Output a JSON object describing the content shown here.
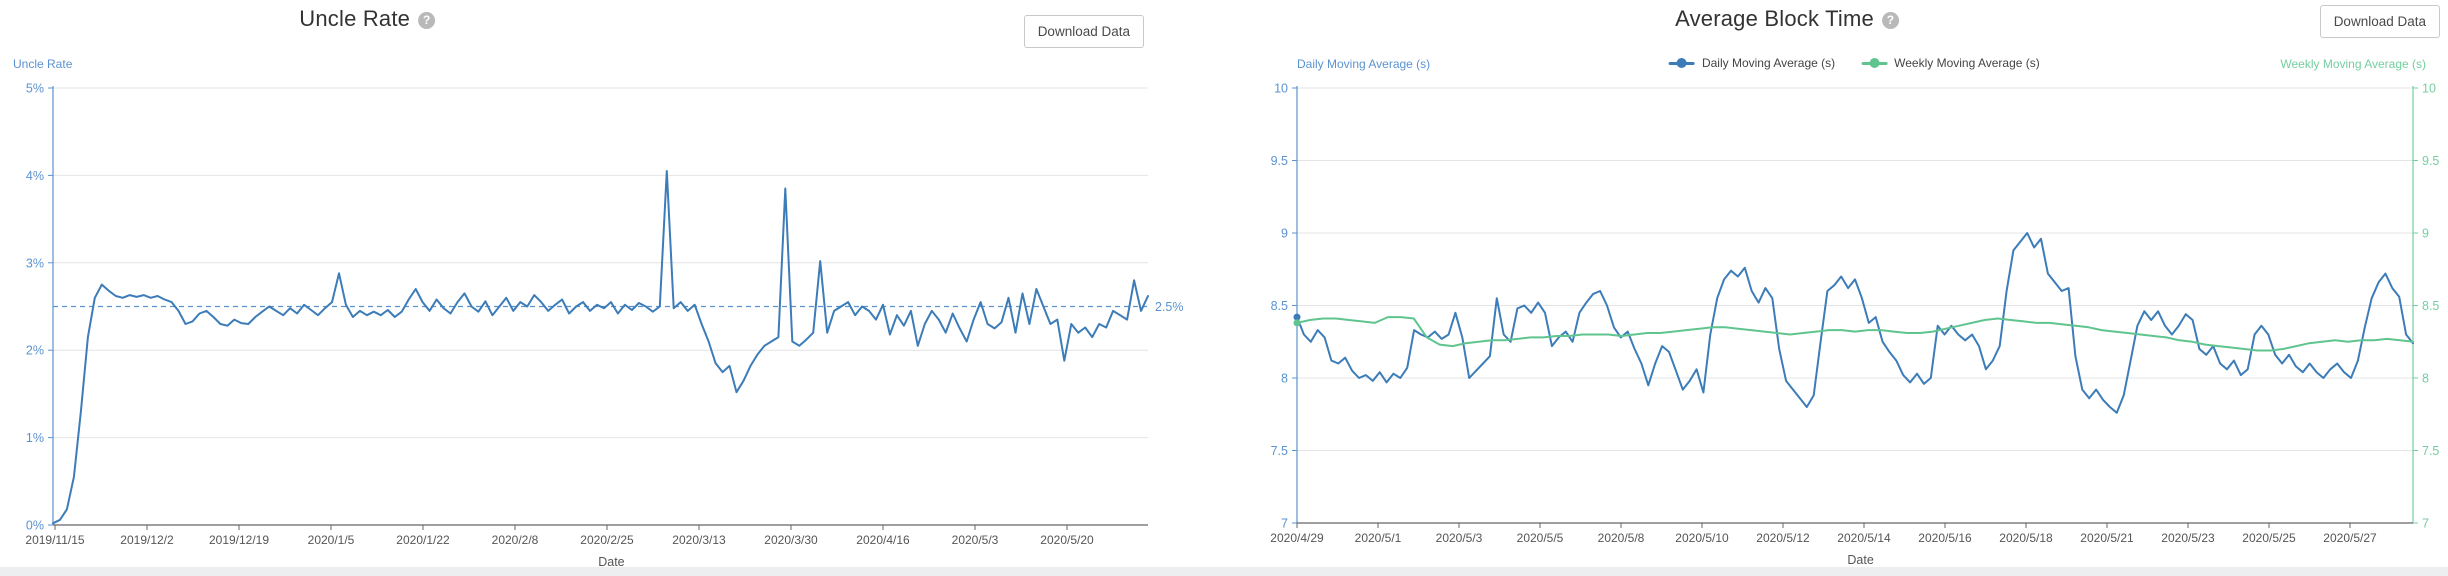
{
  "colors": {
    "blue_line": "#3c7cb8",
    "green_line": "#5fc48e",
    "axis_blue": "#5b93cf",
    "axis_green": "#74cfa0",
    "grid": "#e4e4e4",
    "x_axis": "#666666",
    "tick_text": "#555555"
  },
  "cards": [
    {
      "download_button_label": "Download Data",
      "help_icon_glyph": "?"
    },
    {
      "download_button_label": "Download Data",
      "help_icon_glyph": "?"
    }
  ],
  "chart_data": [
    {
      "type": "line",
      "title": "Uncle Rate",
      "xlabel": "Date",
      "ylabel": "Uncle Rate",
      "grid": true,
      "legend_position": "none",
      "ylim": [
        0,
        5
      ],
      "y_tick_labels": [
        "0%",
        "1%",
        "2%",
        "3%",
        "4%",
        "5%"
      ],
      "x_tick_labels": [
        "2019/11/15",
        "2019/12/2",
        "2019/12/19",
        "2020/1/5",
        "2020/1/22",
        "2020/2/8",
        "2020/2/25",
        "2020/3/13",
        "2020/3/30",
        "2020/4/16",
        "2020/5/3",
        "2020/5/20"
      ],
      "reference_line": {
        "value": 2.5,
        "label": "2.5%",
        "style": "dashed"
      },
      "series": [
        {
          "name": "Uncle Rate",
          "color": "#3c7cb8",
          "values": [
            0.02,
            0.06,
            0.18,
            0.55,
            1.3,
            2.15,
            2.6,
            2.75,
            2.68,
            2.62,
            2.6,
            2.63,
            2.61,
            2.63,
            2.6,
            2.62,
            2.58,
            2.55,
            2.45,
            2.3,
            2.33,
            2.42,
            2.45,
            2.38,
            2.3,
            2.28,
            2.35,
            2.31,
            2.3,
            2.38,
            2.44,
            2.5,
            2.45,
            2.4,
            2.48,
            2.42,
            2.52,
            2.46,
            2.4,
            2.48,
            2.55,
            2.88,
            2.52,
            2.38,
            2.45,
            2.4,
            2.44,
            2.4,
            2.46,
            2.38,
            2.44,
            2.58,
            2.7,
            2.55,
            2.45,
            2.58,
            2.48,
            2.42,
            2.55,
            2.65,
            2.5,
            2.44,
            2.56,
            2.4,
            2.5,
            2.6,
            2.45,
            2.55,
            2.5,
            2.63,
            2.55,
            2.45,
            2.52,
            2.58,
            2.42,
            2.5,
            2.55,
            2.45,
            2.52,
            2.48,
            2.55,
            2.42,
            2.52,
            2.46,
            2.54,
            2.5,
            2.44,
            2.5,
            4.05,
            2.48,
            2.55,
            2.45,
            2.52,
            2.3,
            2.1,
            1.85,
            1.75,
            1.82,
            1.52,
            1.65,
            1.82,
            1.95,
            2.05,
            2.1,
            2.15,
            3.85,
            2.1,
            2.05,
            2.12,
            2.2,
            3.02,
            2.2,
            2.45,
            2.5,
            2.55,
            2.4,
            2.5,
            2.45,
            2.35,
            2.52,
            2.18,
            2.4,
            2.28,
            2.45,
            2.05,
            2.3,
            2.45,
            2.35,
            2.2,
            2.42,
            2.25,
            2.1,
            2.35,
            2.55,
            2.3,
            2.25,
            2.32,
            2.6,
            2.2,
            2.65,
            2.3,
            2.7,
            2.5,
            2.3,
            2.35,
            1.88,
            2.3,
            2.2,
            2.26,
            2.15,
            2.3,
            2.26,
            2.45,
            2.4,
            2.35,
            2.8,
            2.45,
            2.62
          ]
        }
      ]
    },
    {
      "type": "line",
      "title": "Average Block Time",
      "xlabel": "Date",
      "ylabel_left": "Daily Moving Average (s)",
      "ylabel_right": "Weekly Moving Average (s)",
      "grid": true,
      "legend_position": "top-center",
      "ylim": [
        7,
        10
      ],
      "y_tick_labels": [
        "7",
        "7.5",
        "8",
        "8.5",
        "9",
        "9.5",
        "10"
      ],
      "x_tick_labels": [
        "2020/4/29",
        "2020/5/1",
        "2020/5/3",
        "2020/5/5",
        "2020/5/8",
        "2020/5/10",
        "2020/5/12",
        "2020/5/14",
        "2020/5/16",
        "2020/5/18",
        "2020/5/21",
        "2020/5/23",
        "2020/5/25",
        "2020/5/27"
      ],
      "series": [
        {
          "name": "Daily Moving Average (s)",
          "color": "#3c7cb8",
          "start_marker": true,
          "values": [
            8.42,
            8.3,
            8.25,
            8.33,
            8.28,
            8.12,
            8.1,
            8.14,
            8.05,
            8.0,
            8.02,
            7.98,
            8.04,
            7.97,
            8.03,
            8.0,
            8.07,
            8.33,
            8.3,
            8.28,
            8.32,
            8.27,
            8.3,
            8.45,
            8.28,
            8.0,
            8.05,
            8.1,
            8.15,
            8.55,
            8.3,
            8.25,
            8.48,
            8.5,
            8.45,
            8.52,
            8.45,
            8.22,
            8.28,
            8.32,
            8.25,
            8.45,
            8.52,
            8.58,
            8.6,
            8.5,
            8.35,
            8.28,
            8.32,
            8.2,
            8.1,
            7.95,
            8.1,
            8.22,
            8.18,
            8.05,
            7.92,
            7.98,
            8.06,
            7.9,
            8.3,
            8.55,
            8.68,
            8.74,
            8.7,
            8.76,
            8.6,
            8.52,
            8.62,
            8.55,
            8.2,
            7.98,
            7.92,
            7.86,
            7.8,
            7.88,
            8.25,
            8.6,
            8.64,
            8.7,
            8.62,
            8.68,
            8.55,
            8.38,
            8.42,
            8.25,
            8.18,
            8.12,
            8.02,
            7.97,
            8.03,
            7.96,
            8.0,
            8.36,
            8.3,
            8.36,
            8.3,
            8.26,
            8.3,
            8.22,
            8.06,
            8.12,
            8.22,
            8.6,
            8.88,
            8.94,
            9.0,
            8.9,
            8.96,
            8.72,
            8.66,
            8.6,
            8.62,
            8.15,
            7.92,
            7.86,
            7.92,
            7.85,
            7.8,
            7.76,
            7.88,
            8.12,
            8.36,
            8.46,
            8.4,
            8.46,
            8.36,
            8.3,
            8.36,
            8.44,
            8.4,
            8.2,
            8.16,
            8.22,
            8.1,
            8.06,
            8.12,
            8.02,
            8.06,
            8.3,
            8.36,
            8.3,
            8.16,
            8.1,
            8.16,
            8.08,
            8.04,
            8.1,
            8.04,
            8.0,
            8.06,
            8.1,
            8.04,
            8.0,
            8.12,
            8.35,
            8.55,
            8.66,
            8.72,
            8.62,
            8.56,
            8.3,
            8.24
          ]
        },
        {
          "name": "Weekly Moving Average (s)",
          "color": "#5fc48e",
          "start_marker": true,
          "values": [
            8.38,
            8.4,
            8.41,
            8.41,
            8.4,
            8.39,
            8.38,
            8.42,
            8.42,
            8.41,
            8.28,
            8.23,
            8.22,
            8.24,
            8.25,
            8.26,
            8.26,
            8.27,
            8.28,
            8.28,
            8.29,
            8.29,
            8.3,
            8.3,
            8.3,
            8.29,
            8.3,
            8.31,
            8.31,
            8.32,
            8.33,
            8.34,
            8.35,
            8.35,
            8.34,
            8.33,
            8.32,
            8.31,
            8.3,
            8.31,
            8.32,
            8.33,
            8.33,
            8.32,
            8.33,
            8.33,
            8.32,
            8.31,
            8.31,
            8.32,
            8.34,
            8.36,
            8.38,
            8.4,
            8.41,
            8.4,
            8.39,
            8.38,
            8.38,
            8.37,
            8.36,
            8.35,
            8.33,
            8.32,
            8.31,
            8.3,
            8.29,
            8.28,
            8.26,
            8.25,
            8.23,
            8.22,
            8.21,
            8.2,
            8.19,
            8.19,
            8.2,
            8.22,
            8.24,
            8.25,
            8.26,
            8.25,
            8.26,
            8.26,
            8.27,
            8.26,
            8.25
          ]
        }
      ]
    }
  ]
}
